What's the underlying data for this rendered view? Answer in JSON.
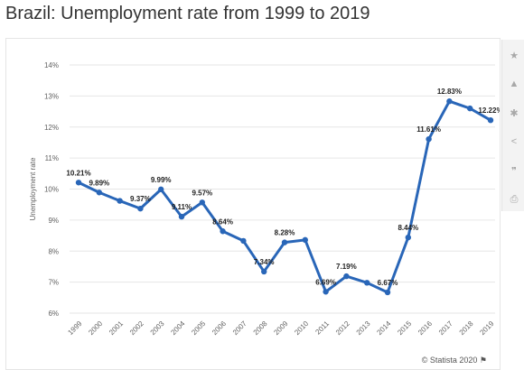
{
  "title": "Brazil: Unemployment rate from 1999 to 2019",
  "footer": {
    "credit": "© Statista 2020",
    "flag_icon": "flag-icon"
  },
  "sidebar": {
    "items": [
      {
        "name": "star-icon",
        "glyph": "★"
      },
      {
        "name": "bell-icon",
        "glyph": "🔔"
      },
      {
        "name": "gear-icon",
        "glyph": "⚙"
      },
      {
        "name": "share-icon",
        "glyph": "⋖"
      },
      {
        "name": "quote-icon",
        "glyph": "❞"
      },
      {
        "name": "print-icon",
        "glyph": "⎙"
      }
    ]
  },
  "colors": {
    "line": "#2966b8",
    "grid": "#e6e6e6",
    "axis_text": "#606060",
    "label_text": "#222222"
  },
  "chart_data": {
    "type": "line",
    "title": "Brazil: Unemployment rate from 1999 to 2019",
    "xlabel": "",
    "ylabel": "Unemployment rate",
    "x": [
      "1999",
      "2000",
      "2001",
      "2002",
      "2003",
      "2004",
      "2005",
      "2006",
      "2007",
      "2008",
      "2009",
      "2010",
      "2011",
      "2012",
      "2013",
      "2014",
      "2015",
      "2016",
      "2017",
      "2018",
      "2019"
    ],
    "series": [
      {
        "values": [
          10.21,
          9.89,
          9.62,
          9.37,
          9.99,
          9.11,
          9.57,
          8.64,
          8.33,
          7.34,
          8.28,
          8.36,
          6.69,
          7.19,
          6.98,
          6.67,
          8.44,
          11.61,
          12.83,
          12.6,
          12.22
        ]
      }
    ],
    "labels": [
      "10.21%",
      "9.89%",
      "",
      "9.37%",
      "9.99%",
      "9.11%",
      "9.57%",
      "8.64%",
      "",
      "7.34%",
      "8.28%",
      "",
      "6.69%",
      "7.19%",
      "",
      "6.67%",
      "8.44%",
      "11.61%",
      "12.83%",
      "",
      "12.22%"
    ],
    "yticks": [
      "6%",
      "7%",
      "8%",
      "9%",
      "10%",
      "11%",
      "12%",
      "13%",
      "14%"
    ],
    "ylim": [
      6,
      14
    ],
    "grid": true,
    "legend": "none"
  }
}
